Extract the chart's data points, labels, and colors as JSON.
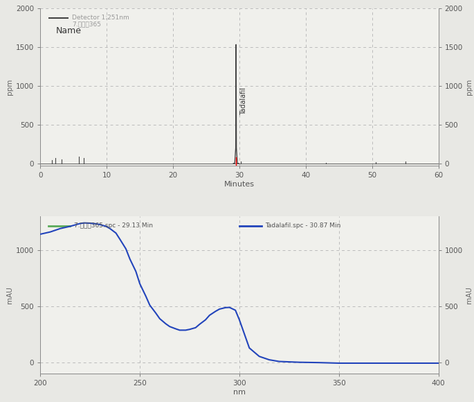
{
  "top_plot": {
    "ylim": [
      -30,
      2000
    ],
    "xlim": [
      0,
      60
    ],
    "yticks": [
      0,
      500,
      1000,
      1500,
      2000
    ],
    "xticks": [
      0,
      10,
      20,
      30,
      40,
      50,
      60
    ],
    "xlabel": "Minutes",
    "ylabel_left": "ppm",
    "ylabel_right": "ppm",
    "legend_line1": "Detector 1:251nm",
    "legend_line2": "7.图表中365",
    "legend_name_label": "Name",
    "peak_label": "Tadalafil",
    "peak_x": 29.5,
    "peak_height": 1530,
    "small_peaks": [
      {
        "x": 1.8,
        "height": 45
      },
      {
        "x": 2.3,
        "height": 65
      },
      {
        "x": 3.2,
        "height": 55
      },
      {
        "x": 5.8,
        "height": 85
      },
      {
        "x": 6.5,
        "height": 70
      },
      {
        "x": 30.2,
        "height": 22
      },
      {
        "x": 43.0,
        "height": 8
      },
      {
        "x": 50.5,
        "height": 14
      },
      {
        "x": 55.0,
        "height": 20
      }
    ],
    "line_color": "#444444",
    "red_line_x": 29.5,
    "background": "#f0f0ec",
    "grid_color": "#bbbbbb",
    "grid_style": "dashed"
  },
  "bottom_plot": {
    "ylim": [
      -100,
      1300
    ],
    "xlim": [
      200,
      400
    ],
    "yticks": [
      0,
      500,
      1000
    ],
    "xticks": [
      200,
      250,
      300,
      350,
      400
    ],
    "xlabel": "nm",
    "ylabel_left": "mAU",
    "ylabel_right": "mAU",
    "legend_green": "7.图表中365.spc - 29.13 Min",
    "legend_blue": "Tadalafil.spc - 30.87 Min",
    "green_color": "#5aaa5a",
    "blue_color": "#2244bb",
    "background": "#f0f0ec",
    "grid_color": "#bbbbbb",
    "grid_style": "dashed",
    "blue_curve_x": [
      200,
      205,
      210,
      215,
      218,
      220,
      222,
      225,
      228,
      230,
      233,
      235,
      238,
      240,
      243,
      245,
      248,
      250,
      253,
      255,
      258,
      260,
      263,
      265,
      268,
      270,
      273,
      275,
      278,
      280,
      283,
      285,
      288,
      290,
      293,
      295,
      298,
      300,
      303,
      305,
      310,
      315,
      320,
      330,
      340,
      350,
      360,
      370,
      380,
      390,
      400
    ],
    "blue_curve_y": [
      1140,
      1160,
      1190,
      1210,
      1225,
      1235,
      1240,
      1238,
      1232,
      1225,
      1210,
      1190,
      1150,
      1095,
      1010,
      920,
      810,
      700,
      590,
      510,
      440,
      390,
      345,
      320,
      300,
      288,
      288,
      295,
      310,
      340,
      380,
      420,
      455,
      475,
      488,
      490,
      465,
      380,
      230,
      130,
      55,
      25,
      10,
      3,
      0,
      -5,
      -5,
      -5,
      -5,
      -5,
      -5
    ]
  }
}
